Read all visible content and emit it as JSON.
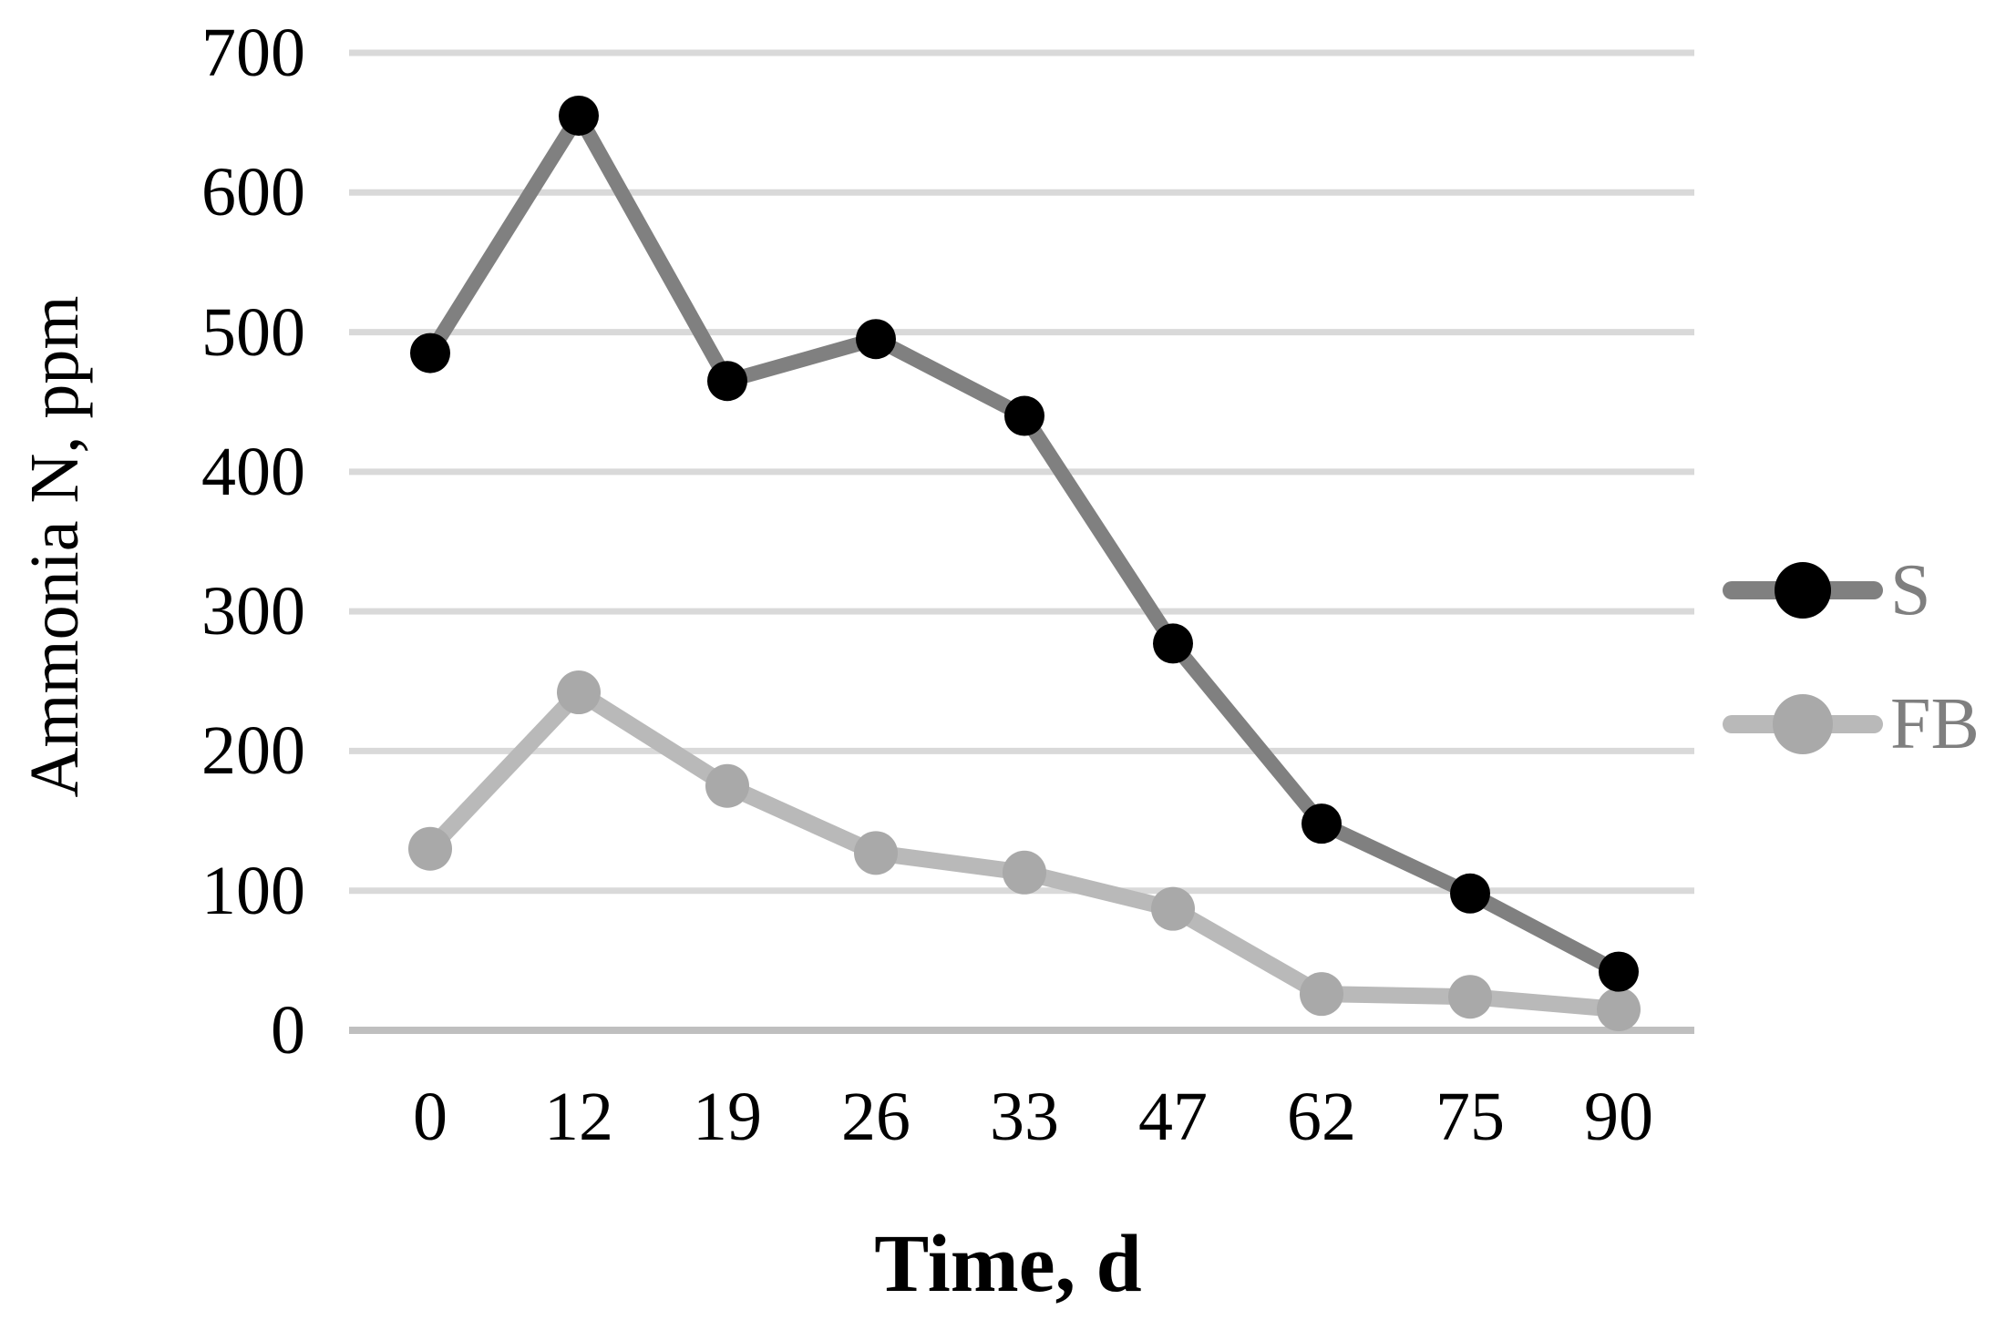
{
  "chart_data": {
    "type": "line",
    "title": "",
    "xlabel": "Time, d",
    "ylabel": "Ammonia N, ppm",
    "categories": [
      "0",
      "12",
      "19",
      "26",
      "33",
      "47",
      "62",
      "75",
      "90"
    ],
    "x_axis_type": "categorical",
    "y_ticks": [
      {
        "label": "700",
        "value": 700
      },
      {
        "label": "600",
        "value": 600
      },
      {
        "label": "500",
        "value": 500
      },
      {
        "label": "400",
        "value": 400
      },
      {
        "label": "300",
        "value": 300
      },
      {
        "label": "200",
        "value": 200
      },
      {
        "label": "100",
        "value": 100
      },
      {
        "label": "0",
        "value": 0
      }
    ],
    "ylim": [
      0,
      700
    ],
    "grid": "horizontal",
    "legend_position": "right",
    "series": [
      {
        "name": "S",
        "values": [
          485,
          655,
          465,
          495,
          440,
          277,
          148,
          98,
          42
        ],
        "line_color": "#808080",
        "marker_color": "#000000"
      },
      {
        "name": "FB",
        "values": [
          130,
          242,
          175,
          127,
          113,
          87,
          26,
          24,
          15
        ],
        "line_color": "#b9b9b9",
        "marker_color": "#a9a9a9"
      }
    ],
    "colors": {
      "gridline": "#d9d9d9",
      "axis_line": "#bfbfbf",
      "tick_label": "#000000",
      "axis_title": "#000000",
      "legend_label": "#7f7f7f",
      "background": "#ffffff"
    }
  }
}
